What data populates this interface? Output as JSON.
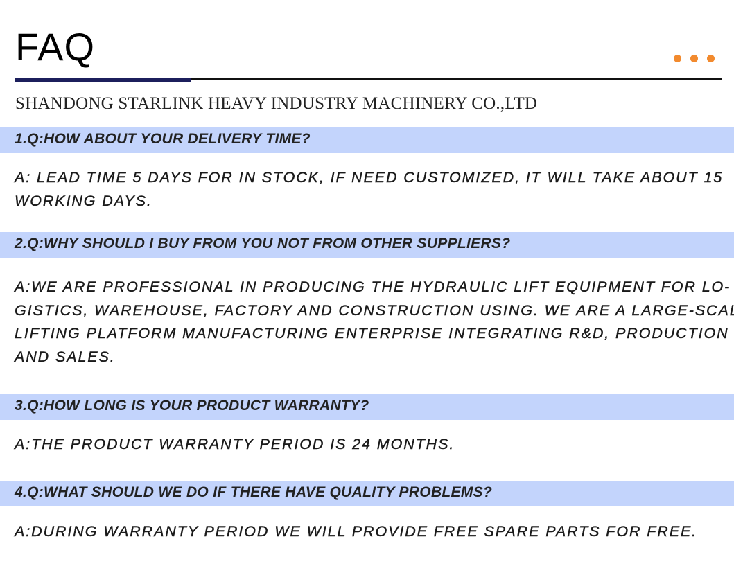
{
  "header": {
    "title": "FAQ",
    "company": "SHANDONG STARLINK HEAVY INDUSTRY MACHINERY CO.,LTD",
    "accent_color": "#f28a2e",
    "rule_color": "#1c1f5c",
    "question_bar_color": "#c3d4fc"
  },
  "faq": [
    {
      "question": "1.Q:HOW ABOUT YOUR DELIVERY TIME?",
      "answer_lines": [
        "A: LEAD TIME 5 DAYS FOR IN STOCK, IF NEED CUSTOMIZED, IT WILL TAKE ABOUT 15",
        "WORKING DAYS."
      ]
    },
    {
      "question": "2.Q:WHY SHOULD I BUY FROM YOU NOT FROM OTHER SUPPLIERS?",
      "answer_lines": [
        "A:WE ARE PROFESSIONAL IN PRODUCING THE HYDRAULIC LIFT EQUIPMENT FOR LO-",
        "GISTICS, WAREHOUSE, FACTORY AND CONSTRUCTION USING. WE ARE A LARGE-SCALE",
        "LIFTING PLATFORM MANUFACTURING ENTERPRISE INTEGRATING R&D, PRODUCTION",
        "AND SALES."
      ]
    },
    {
      "question": "3.Q:HOW LONG IS YOUR PRODUCT WARRANTY?",
      "answer_lines": [
        "A:THE PRODUCT WARRANTY PERIOD IS 24 MONTHS."
      ]
    },
    {
      "question": "4.Q:WHAT SHOULD WE DO IF THERE HAVE QUALITY PROBLEMS?",
      "answer_lines": [
        "A:DURING WARRANTY PERIOD WE WILL PROVIDE FREE SPARE PARTS FOR FREE."
      ]
    }
  ]
}
